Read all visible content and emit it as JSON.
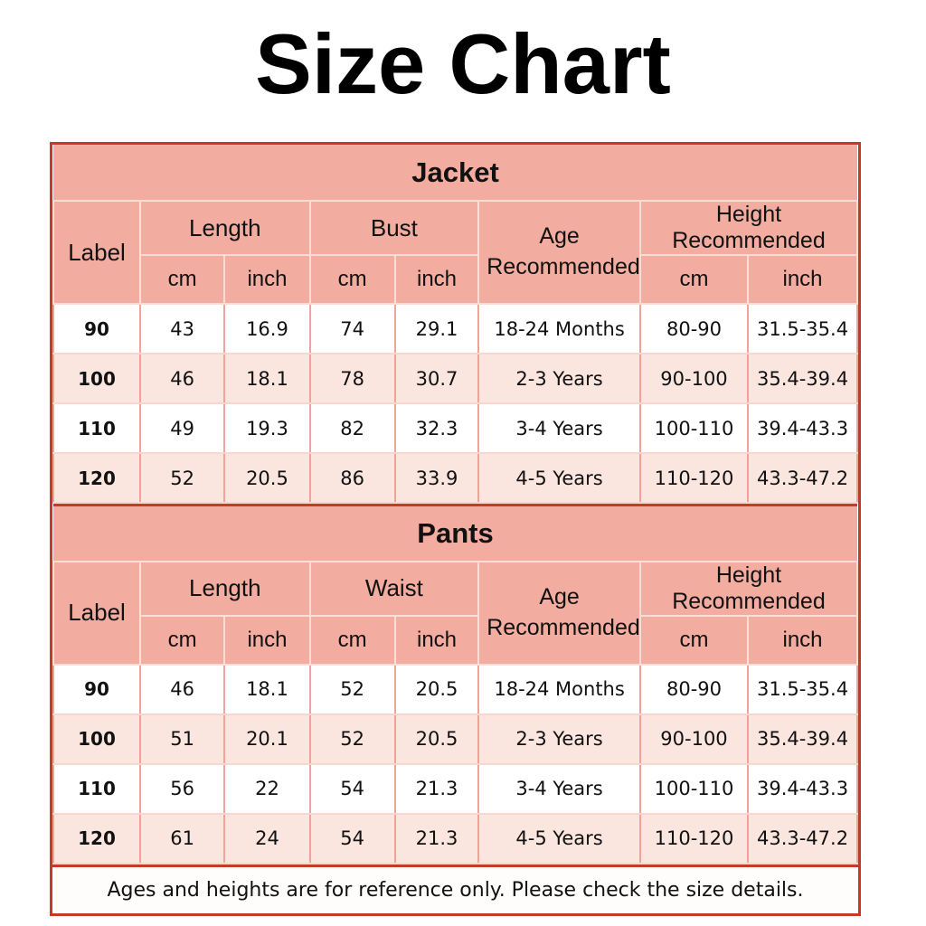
{
  "title": "Size Chart",
  "columns": {
    "label": "Label",
    "cm": "cm",
    "inch": "inch",
    "age": "Age Recommended",
    "height": "Height Recommended"
  },
  "jacket": {
    "section_title": "Jacket",
    "measure_groups": [
      "Length",
      "Bust"
    ],
    "rows": [
      [
        "90",
        "43",
        "16.9",
        "74",
        "29.1",
        "18-24 Months",
        "80-90",
        "31.5-35.4"
      ],
      [
        "100",
        "46",
        "18.1",
        "78",
        "30.7",
        "2-3 Years",
        "90-100",
        "35.4-39.4"
      ],
      [
        "110",
        "49",
        "19.3",
        "82",
        "32.3",
        "3-4 Years",
        "100-110",
        "39.4-43.3"
      ],
      [
        "120",
        "52",
        "20.5",
        "86",
        "33.9",
        "4-5 Years",
        "110-120",
        "43.3-47.2"
      ]
    ]
  },
  "pants": {
    "section_title": "Pants",
    "measure_groups": [
      "Length",
      "Waist"
    ],
    "rows": [
      [
        "90",
        "46",
        "18.1",
        "52",
        "20.5",
        "18-24 Months",
        "80-90",
        "31.5-35.4"
      ],
      [
        "100",
        "51",
        "20.1",
        "52",
        "20.5",
        "2-3 Years",
        "90-100",
        "35.4-39.4"
      ],
      [
        "110",
        "56",
        "22",
        "54",
        "21.3",
        "3-4 Years",
        "100-110",
        "39.4-43.3"
      ],
      [
        "120",
        "61",
        "24",
        "54",
        "21.3",
        "4-5 Years",
        "110-120",
        "43.3-47.2"
      ]
    ]
  },
  "footer": {
    "note": "Ages and heights are for reference only. Please check the size details."
  },
  "colors": {
    "border_red": "#c53b2a",
    "header_pink": "#f2aca0",
    "row_alt_pink": "#fbe5df",
    "row_white": "#ffffff",
    "text_black": "#111111"
  }
}
